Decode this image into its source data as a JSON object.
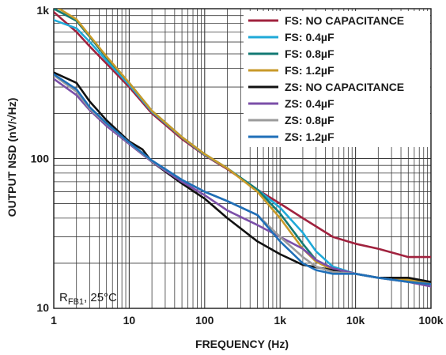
{
  "chart_data": {
    "type": "line",
    "title": "",
    "xlabel": "FREQUENCY (Hz)",
    "ylabel": "OUTPUT NSD (nV/√Hz)",
    "xscale": "log",
    "yscale": "log",
    "xlim": [
      1,
      100000
    ],
    "ylim": [
      10,
      1000
    ],
    "grid": true,
    "legend_position": "top-right",
    "x_ticks": [
      {
        "value": 1,
        "label": "1"
      },
      {
        "value": 10,
        "label": "10"
      },
      {
        "value": 100,
        "label": "100"
      },
      {
        "value": 1000,
        "label": "1k"
      },
      {
        "value": 10000,
        "label": "10k"
      },
      {
        "value": 100000,
        "label": "100k"
      }
    ],
    "y_ticks": [
      {
        "value": 10,
        "label": "10"
      },
      {
        "value": 100,
        "label": "100"
      },
      {
        "value": 1000,
        "label": "1k"
      }
    ],
    "annotation": {
      "main": "R",
      "sub": "FB1",
      "rest": ", 25°C"
    },
    "series": [
      {
        "name": "FS: NO CAPACITANCE",
        "color": "#a0223e",
        "points": [
          [
            1,
            950
          ],
          [
            2,
            700
          ],
          [
            3,
            560
          ],
          [
            5,
            430
          ],
          [
            10,
            300
          ],
          [
            20,
            200
          ],
          [
            50,
            135
          ],
          [
            100,
            105
          ],
          [
            200,
            85
          ],
          [
            500,
            62
          ],
          [
            1000,
            50
          ],
          [
            2000,
            40
          ],
          [
            5000,
            30
          ],
          [
            10000,
            27
          ],
          [
            20000,
            25
          ],
          [
            50000,
            22
          ],
          [
            100000,
            22
          ]
        ]
      },
      {
        "name": "FS: 0.4µF",
        "color": "#1fa9d8",
        "points": [
          [
            1,
            840
          ],
          [
            2,
            740
          ],
          [
            3,
            600
          ],
          [
            5,
            450
          ],
          [
            10,
            310
          ],
          [
            20,
            205
          ],
          [
            50,
            138
          ],
          [
            100,
            106
          ],
          [
            200,
            86
          ],
          [
            500,
            62
          ],
          [
            1000,
            47
          ],
          [
            2000,
            32
          ],
          [
            3000,
            24
          ],
          [
            5000,
            19
          ],
          [
            10000,
            17
          ],
          [
            20000,
            16
          ],
          [
            50000,
            15.5
          ],
          [
            100000,
            15
          ]
        ]
      },
      {
        "name": "FS: 0.8µF",
        "color": "#137a74",
        "points": [
          [
            1,
            1000
          ],
          [
            2,
            830
          ],
          [
            3,
            650
          ],
          [
            5,
            470
          ],
          [
            10,
            320
          ],
          [
            20,
            208
          ],
          [
            50,
            139
          ],
          [
            100,
            107
          ],
          [
            200,
            86
          ],
          [
            500,
            62
          ],
          [
            1000,
            43
          ],
          [
            2000,
            27
          ],
          [
            3000,
            21
          ],
          [
            5000,
            18.5
          ],
          [
            10000,
            17
          ],
          [
            20000,
            16
          ],
          [
            50000,
            15.5
          ],
          [
            100000,
            15
          ]
        ]
      },
      {
        "name": "FS: 1.2µF",
        "color": "#c89a2a",
        "points": [
          [
            1,
            1050
          ],
          [
            2,
            850
          ],
          [
            3,
            660
          ],
          [
            5,
            480
          ],
          [
            10,
            320
          ],
          [
            20,
            208
          ],
          [
            50,
            139
          ],
          [
            100,
            107
          ],
          [
            200,
            86
          ],
          [
            500,
            60
          ],
          [
            1000,
            40
          ],
          [
            2000,
            25
          ],
          [
            3000,
            20.5
          ],
          [
            5000,
            18
          ],
          [
            10000,
            17
          ],
          [
            20000,
            16
          ],
          [
            50000,
            15.5
          ],
          [
            100000,
            15
          ]
        ]
      },
      {
        "name": "ZS: NO CAPACITANCE",
        "color": "#111111",
        "points": [
          [
            1,
            375
          ],
          [
            2,
            320
          ],
          [
            3,
            240
          ],
          [
            5,
            180
          ],
          [
            10,
            130
          ],
          [
            15,
            115
          ],
          [
            20,
            95
          ],
          [
            50,
            68
          ],
          [
            100,
            54
          ],
          [
            200,
            40
          ],
          [
            500,
            28
          ],
          [
            1000,
            23
          ],
          [
            2000,
            19.5
          ],
          [
            5000,
            18
          ],
          [
            10000,
            17
          ],
          [
            20000,
            16
          ],
          [
            50000,
            16
          ],
          [
            100000,
            15
          ]
        ]
      },
      {
        "name": "ZS: 0.4µF",
        "color": "#7b4fa8",
        "points": [
          [
            1,
            340
          ],
          [
            2,
            265
          ],
          [
            3,
            210
          ],
          [
            5,
            165
          ],
          [
            10,
            125
          ],
          [
            20,
            95
          ],
          [
            50,
            70
          ],
          [
            100,
            57
          ],
          [
            200,
            45
          ],
          [
            500,
            36
          ],
          [
            1000,
            30
          ],
          [
            2000,
            25
          ],
          [
            3000,
            21
          ],
          [
            5000,
            18.5
          ],
          [
            10000,
            17
          ],
          [
            20000,
            16
          ],
          [
            50000,
            15
          ],
          [
            100000,
            14
          ]
        ]
      },
      {
        "name": "ZS: 0.8µF",
        "color": "#9b9b9b",
        "points": [
          [
            1,
            360
          ],
          [
            2,
            280
          ],
          [
            3,
            215
          ],
          [
            5,
            170
          ],
          [
            10,
            127
          ],
          [
            20,
            96
          ],
          [
            50,
            72
          ],
          [
            100,
            60
          ],
          [
            200,
            52
          ],
          [
            500,
            42
          ],
          [
            1000,
            30
          ],
          [
            2000,
            22
          ],
          [
            3000,
            19
          ],
          [
            5000,
            17.5
          ],
          [
            10000,
            17
          ],
          [
            20000,
            16
          ],
          [
            50000,
            15
          ],
          [
            100000,
            14.5
          ]
        ]
      },
      {
        "name": "ZS: 1.2µF",
        "color": "#1f6fb8",
        "points": [
          [
            1,
            365
          ],
          [
            2,
            290
          ],
          [
            3,
            220
          ],
          [
            5,
            172
          ],
          [
            10,
            128
          ],
          [
            20,
            97
          ],
          [
            50,
            72
          ],
          [
            100,
            60
          ],
          [
            200,
            52
          ],
          [
            500,
            42
          ],
          [
            1000,
            28
          ],
          [
            2000,
            20
          ],
          [
            3000,
            18
          ],
          [
            5000,
            17
          ],
          [
            10000,
            17
          ],
          [
            20000,
            16
          ],
          [
            50000,
            15
          ],
          [
            100000,
            14.5
          ]
        ]
      }
    ]
  }
}
